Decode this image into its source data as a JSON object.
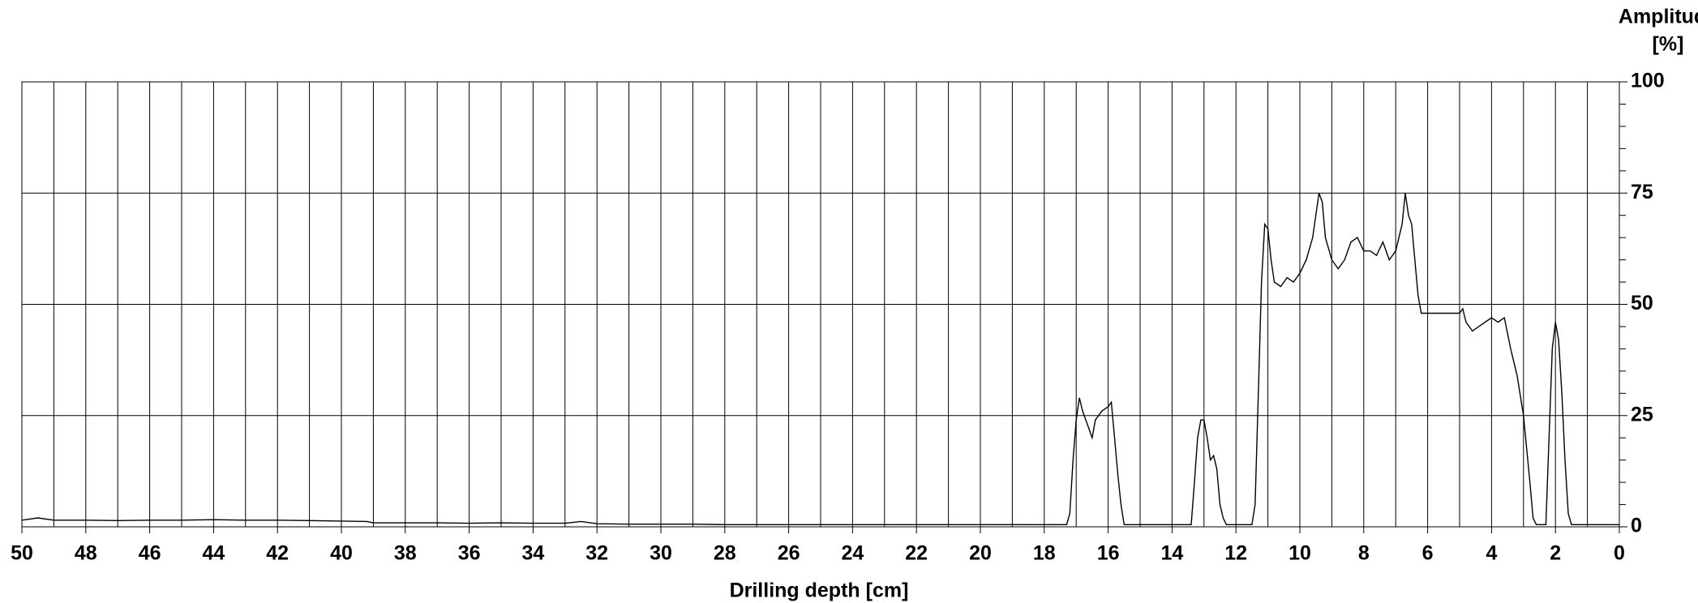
{
  "chart_data": {
    "type": "line",
    "xlabel": "Drilling depth [cm]",
    "ylabel": [
      "Amplitude",
      "[%]"
    ],
    "xlim": [
      50,
      0
    ],
    "ylim": [
      0,
      100
    ],
    "xticks": [
      50,
      48,
      46,
      44,
      42,
      40,
      38,
      36,
      34,
      32,
      30,
      28,
      26,
      24,
      22,
      20,
      18,
      16,
      14,
      12,
      10,
      8,
      6,
      4,
      2,
      0
    ],
    "xminor_ticks": [
      49,
      47,
      45,
      43,
      41,
      39,
      37,
      35,
      33,
      31,
      29,
      27,
      25,
      23,
      21,
      19,
      17,
      15,
      13,
      11,
      9,
      7,
      5,
      3,
      1
    ],
    "yticks": [
      0,
      25,
      50,
      75,
      100
    ],
    "yminor_ticks": [
      5,
      10,
      15,
      20,
      30,
      35,
      40,
      45,
      55,
      60,
      65,
      70,
      80,
      85,
      90,
      95
    ],
    "grid": true,
    "y_axis_side": "right",
    "series": [
      {
        "name": "Amplitude",
        "color": "#000000",
        "x": [
          50,
          49.5,
          49,
          48,
          47,
          46,
          45,
          44,
          43,
          42,
          41,
          40,
          39.2,
          39,
          38,
          37,
          36,
          35,
          34,
          33,
          32.5,
          32,
          31,
          30,
          29,
          28,
          27,
          26,
          25,
          24,
          23,
          22,
          21,
          20,
          19,
          18,
          17.3,
          17.2,
          17.1,
          17.0,
          16.9,
          16.8,
          16.6,
          16.5,
          16.4,
          16.2,
          16.0,
          15.9,
          15.8,
          15.7,
          15.6,
          15.5,
          15,
          14,
          13.4,
          13.3,
          13.2,
          13.1,
          13.0,
          12.9,
          12.8,
          12.7,
          12.6,
          12.5,
          12.4,
          12.3,
          12,
          11.5,
          11.4,
          11.3,
          11.2,
          11.1,
          11.0,
          10.9,
          10.8,
          10.6,
          10.4,
          10.2,
          10.0,
          9.8,
          9.6,
          9.4,
          9.3,
          9.2,
          9.0,
          8.8,
          8.6,
          8.4,
          8.2,
          8.0,
          7.8,
          7.6,
          7.4,
          7.2,
          7.0,
          6.8,
          6.7,
          6.6,
          6.5,
          6.4,
          6.3,
          6.2,
          6.0,
          5.5,
          5.0,
          4.9,
          4.8,
          4.6,
          4.4,
          4.2,
          4.0,
          3.8,
          3.6,
          3.4,
          3.2,
          3.0,
          2.8,
          2.7,
          2.6,
          2.3,
          2.2,
          2.1,
          2.0,
          1.9,
          1.8,
          1.7,
          1.6,
          1.5,
          1,
          0
        ],
        "values": [
          1.5,
          2,
          1.5,
          1.5,
          1.4,
          1.5,
          1.5,
          1.6,
          1.5,
          1.5,
          1.4,
          1.3,
          1.2,
          0.9,
          0.9,
          0.9,
          0.8,
          0.9,
          0.8,
          0.8,
          1.2,
          0.7,
          0.6,
          0.6,
          0.6,
          0.5,
          0.5,
          0.5,
          0.5,
          0.5,
          0.5,
          0.5,
          0.5,
          0.5,
          0.5,
          0.5,
          0.5,
          3,
          15,
          24,
          29,
          26,
          22,
          20,
          24,
          26,
          27,
          28,
          20,
          12,
          5,
          0.5,
          0.5,
          0.5,
          0.5,
          10,
          20,
          24,
          24,
          20,
          15,
          16,
          13,
          5,
          2,
          0.5,
          0.5,
          0.5,
          5,
          30,
          55,
          68,
          67,
          60,
          55,
          54,
          56,
          55,
          57,
          60,
          65,
          75,
          73,
          65,
          60,
          58,
          60,
          64,
          65,
          62,
          62,
          61,
          64,
          60,
          62,
          68,
          75,
          70,
          68,
          60,
          52,
          48,
          48,
          48,
          48,
          49,
          46,
          44,
          45,
          46,
          47,
          46,
          47,
          40,
          34,
          25,
          10,
          2,
          0.5,
          0.5,
          20,
          40,
          46,
          42,
          30,
          15,
          3,
          0.5,
          0.5,
          0.5
        ]
      }
    ]
  }
}
